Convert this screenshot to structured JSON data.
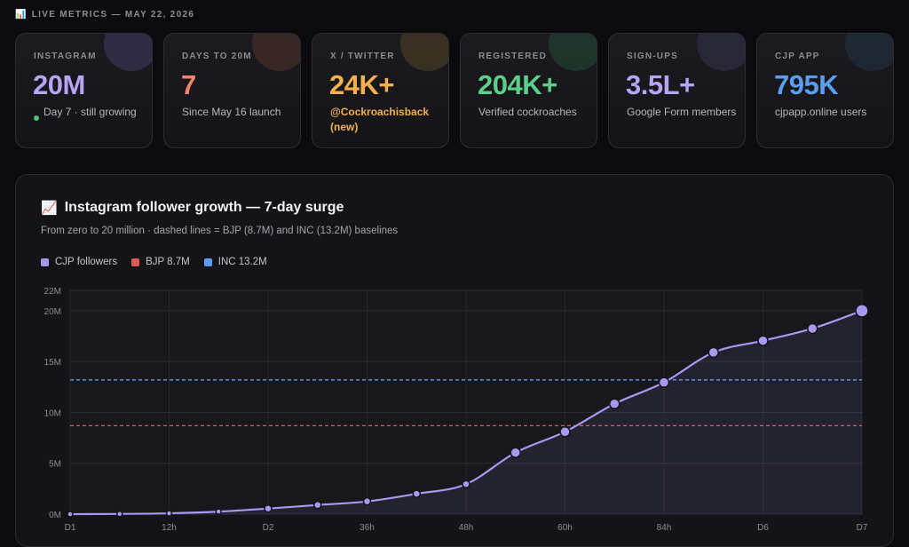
{
  "header": {
    "icon": "bar-chart-icon",
    "label": "LIVE METRICS — MAY 22, 2026"
  },
  "cards": [
    {
      "label": "INSTAGRAM",
      "value": "20M",
      "sub": "Day 7 · still growing",
      "color": "#b7a4f4",
      "blob": "#6b5ca8",
      "status_dot": "#4cc27a"
    },
    {
      "label": "DAYS TO 20M",
      "value": "7",
      "sub": "Since May 16 launch",
      "color": "#f28468",
      "blob": "#8a4a3c"
    },
    {
      "label": "X / TWITTER",
      "value": "24K+",
      "sub": "@Cockroachisback (new)",
      "color": "#f3b04c",
      "blob": "#8a6a2c"
    },
    {
      "label": "REGISTERED",
      "value": "204K+",
      "sub": "Verified cockroaches",
      "color": "#5cd08a",
      "blob": "#2e7a4e"
    },
    {
      "label": "SIGN-UPS",
      "value": "3.5L+",
      "sub": "Google Form members",
      "color": "#b7a4f4",
      "blob": "#4e4a7e"
    },
    {
      "label": "CJP APP",
      "value": "795K",
      "sub": "cjpapp.online users",
      "color": "#5b9df0",
      "blob": "#2e4a70"
    }
  ],
  "panel": {
    "icon": "chart-increasing-icon",
    "title": "Instagram follower growth — 7-day surge",
    "subtitle": "From zero to 20 million · dashed lines = BJP (8.7M) and INC (13.2M) baselines",
    "legend": [
      {
        "label": "CJP followers",
        "color": "#a997f0"
      },
      {
        "label": "BJP 8.7M",
        "color": "#e0595a"
      },
      {
        "label": "INC 13.2M",
        "color": "#5b9df0"
      }
    ]
  },
  "chart_data": {
    "type": "area",
    "x": [
      "D1",
      "",
      "12h",
      "",
      "D2",
      "",
      "36h",
      "",
      "48h",
      "",
      "60h",
      "",
      "84h",
      "",
      "D6",
      "",
      "D7"
    ],
    "x_tick_labels": [
      "D1",
      "12h",
      "D2",
      "36h",
      "48h",
      "60h",
      "84h",
      "D6",
      "D7"
    ],
    "y_ticks": [
      "0M",
      "5M",
      "10M",
      "15M",
      "20M",
      "22M"
    ],
    "ylim": [
      0,
      22
    ],
    "series": [
      {
        "name": "CJP followers",
        "color": "#a997f0",
        "values": [
          0,
          0.02,
          0.08,
          0.25,
          0.55,
          0.9,
          1.25,
          2.0,
          2.95,
          6.05,
          8.1,
          10.85,
          12.95,
          15.9,
          17.05,
          18.25,
          20.0
        ]
      }
    ],
    "baselines": [
      {
        "name": "BJP 8.7M",
        "value": 8.7,
        "color": "#e0595a"
      },
      {
        "name": "INC 13.2M",
        "value": 13.2,
        "color": "#5b9df0"
      }
    ]
  }
}
